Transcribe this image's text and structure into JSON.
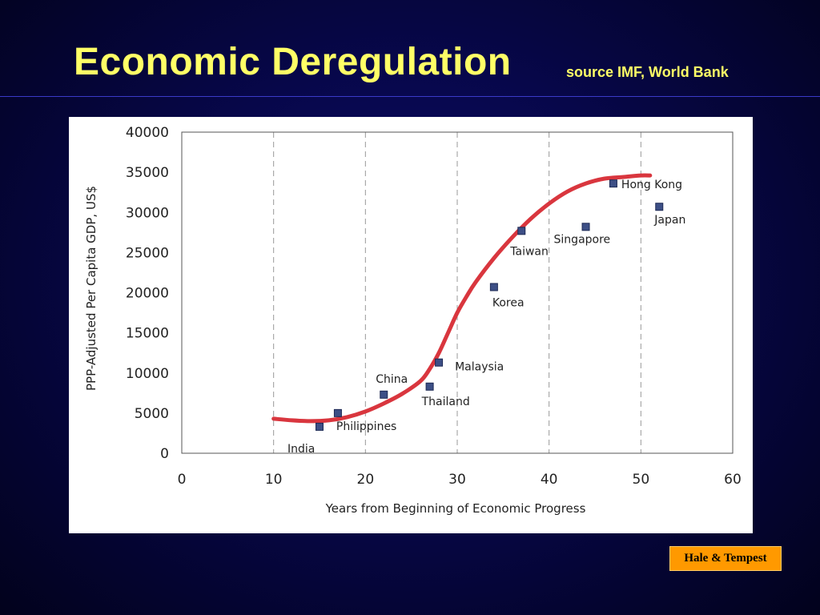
{
  "slide": {
    "title": "Economic Deregulation",
    "source": "source IMF, World Bank",
    "credit": "Hale & Tempest"
  },
  "colors": {
    "background": "#07074a",
    "title": "#ffff66",
    "curve": "#d9363e",
    "marker": "#3d4f86",
    "badge": "#ff9900"
  },
  "chart_data": {
    "type": "scatter",
    "xlabel": "Years from Beginning of Economic Progress",
    "ylabel": "PPP-Adjusted Per Capita GDP, US$",
    "xlim": [
      0,
      60
    ],
    "ylim": [
      0,
      40000
    ],
    "xticks": [
      0,
      10,
      20,
      30,
      40,
      50,
      60
    ],
    "yticks": [
      0,
      5000,
      10000,
      15000,
      20000,
      25000,
      30000,
      35000,
      40000
    ],
    "grid": "vertical dashed",
    "points": [
      {
        "label": "India",
        "x": 15,
        "y": 3300
      },
      {
        "label": "Philippines",
        "x": 17,
        "y": 5000
      },
      {
        "label": "China",
        "x": 22,
        "y": 7300
      },
      {
        "label": "Thailand",
        "x": 27,
        "y": 8300
      },
      {
        "label": "Malaysia",
        "x": 28,
        "y": 11300
      },
      {
        "label": "Korea",
        "x": 34,
        "y": 20700
      },
      {
        "label": "Taiwan",
        "x": 37,
        "y": 27700
      },
      {
        "label": "Singapore",
        "x": 44,
        "y": 28200
      },
      {
        "label": "Hong Kong",
        "x": 47,
        "y": 33600
      },
      {
        "label": "Japan",
        "x": 52,
        "y": 30700
      }
    ],
    "trend_curve": {
      "x": [
        10,
        12,
        14,
        16,
        18,
        20,
        22,
        24,
        26,
        27,
        28,
        29,
        30,
        31,
        32,
        34,
        36,
        38,
        40,
        42,
        44,
        46,
        48,
        50,
        51
      ],
      "y": [
        4300,
        4100,
        4000,
        4100,
        4500,
        5200,
        6200,
        7400,
        9000,
        10500,
        12500,
        15000,
        17500,
        19500,
        21300,
        24300,
        26900,
        29200,
        31100,
        32600,
        33600,
        34200,
        34400,
        34600,
        34600
      ]
    }
  }
}
